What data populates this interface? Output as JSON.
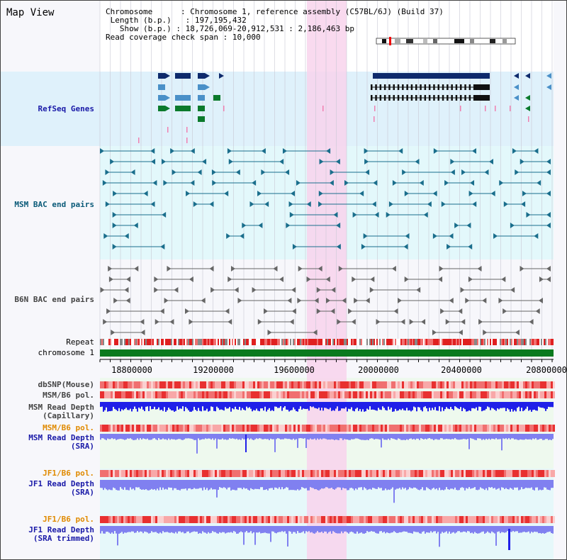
{
  "title": "Map View",
  "info": {
    "chromosome_key": "Chromosome",
    "chromosome_val": "Chromosome 1, reference assembly (C57BL/6J) (Build 37)",
    "length_key": "Length (b.p.)",
    "length_val": "197,195,432",
    "show_key": "Show (b.p.)",
    "show_val": "18,726,069-20,912,531 : 2,186,463 bp",
    "coverage_key": "Read coverage check span",
    "coverage_val": "10,000"
  },
  "tracks": {
    "refseq": "RefSeq Genes",
    "msm_bac": "MSM BAC end pairs",
    "b6n_bac": "B6N BAC end pairs",
    "repeat": "Repeat",
    "chromosome": "chromosome 1",
    "dbsnp": "dbSNP(Mouse)",
    "msm_b6_pol": "MSM/B6 pol.",
    "msm_depth_cap": "MSM Read Depth\n(Capillary)",
    "msm_b6_pol2": "MSM/B6 pol.",
    "msm_depth_sra": "MSM Read Depth\n(SRA)",
    "jf1_b6_pol": "JF1/B6 pol.",
    "jf1_depth_sra": "JF1 Read Depth\n(SRA)",
    "jf1_b6_pol2": "JF1/B6 pol.",
    "jf1_depth_trim": "JF1 Read Depth\n(SRA trimmed)"
  },
  "axis_ticks": [
    "18800000",
    "19200000",
    "19600000",
    "20000000",
    "20400000",
    "20800000"
  ],
  "colors": {
    "refseq_bg": "#dff1fb",
    "msm_bg": "#e3f8fb",
    "highlight": "#f8d4ec",
    "gene_navy": "#0e2a6c",
    "gene_blue": "#4a90c8",
    "gene_green": "#0b7a2c",
    "bac_teal": "#1a6e8c",
    "bac_grey": "#666666",
    "chromosome_green": "#0a7a1e",
    "depth_blue": "#2020e8",
    "depth_light": "#8080f0"
  }
}
